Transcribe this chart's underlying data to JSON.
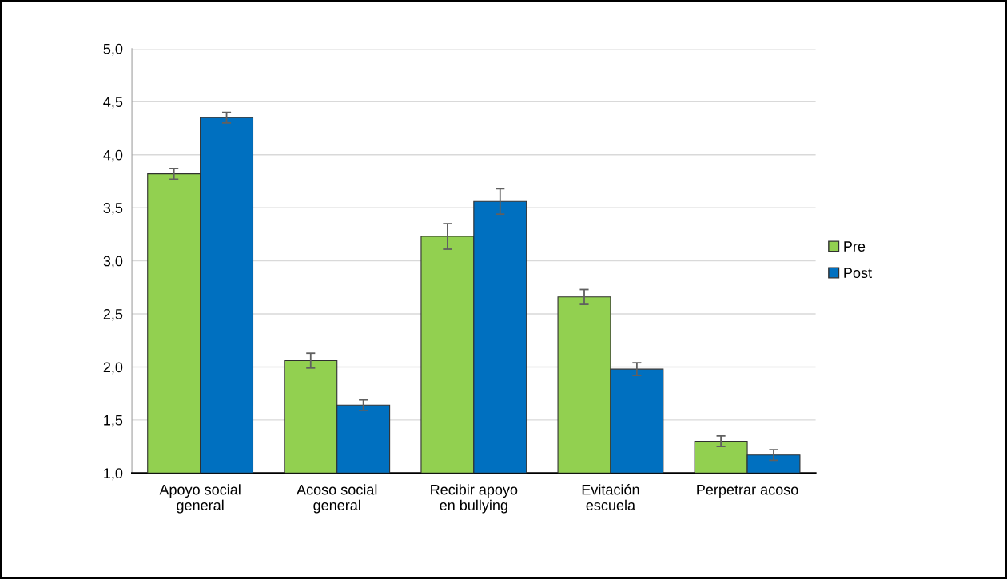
{
  "chart_data": {
    "type": "bar",
    "categories": [
      "Apoyo social\ngeneral",
      "Acoso social\ngeneral",
      "Recibir apoyo\nen bullying",
      "Evitación\nescuela",
      "Perpetrar acoso"
    ],
    "series": [
      {
        "name": "Pre",
        "color": "#92d050",
        "values": [
          3.82,
          2.06,
          3.23,
          2.66,
          1.3
        ],
        "errors": [
          0.05,
          0.07,
          0.12,
          0.07,
          0.05
        ]
      },
      {
        "name": "Post",
        "color": "#0070c0",
        "values": [
          4.35,
          1.64,
          3.56,
          1.98,
          1.17
        ],
        "errors": [
          0.05,
          0.05,
          0.12,
          0.06,
          0.05
        ]
      }
    ],
    "ylim": [
      1.0,
      5.0
    ],
    "yticks": [
      {
        "value": 1.0,
        "label": "1,0"
      },
      {
        "value": 1.5,
        "label": "1,5"
      },
      {
        "value": 2.0,
        "label": "2,0"
      },
      {
        "value": 2.5,
        "label": "2,5"
      },
      {
        "value": 3.0,
        "label": "3,0"
      },
      {
        "value": 3.5,
        "label": "3,5"
      },
      {
        "value": 4.0,
        "label": "4,0"
      },
      {
        "value": 4.5,
        "label": "4,5"
      },
      {
        "value": 5.0,
        "label": "5,0"
      }
    ],
    "grid": "y",
    "legend": "right"
  }
}
